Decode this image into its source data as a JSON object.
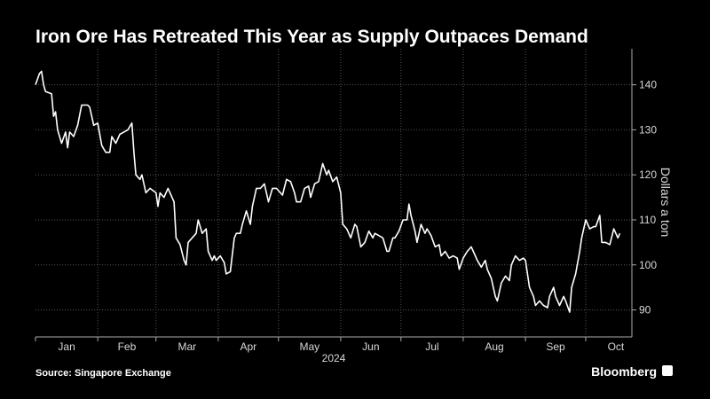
{
  "chart_data": {
    "type": "line",
    "title": "Iron Ore Has Retreated This Year as Supply Outpaces Demand",
    "ylabel": "Dollars a ton",
    "xlabel": "2024",
    "source": "Source: Singapore Exchange",
    "brand": "Bloomberg",
    "grid": true,
    "yaxis_side": "right",
    "xlim": [
      0,
      297
    ],
    "ylim": [
      84,
      148
    ],
    "yticks": [
      90,
      100,
      110,
      120,
      130,
      140
    ],
    "xticks": [
      {
        "value": 0,
        "label": "Jan"
      },
      {
        "value": 31,
        "label": "Feb"
      },
      {
        "value": 60,
        "label": "Mar"
      },
      {
        "value": 91,
        "label": "Apr"
      },
      {
        "value": 121,
        "label": "May"
      },
      {
        "value": 152,
        "label": "Jun"
      },
      {
        "value": 182,
        "label": "Jul"
      },
      {
        "value": 213,
        "label": "Aug"
      },
      {
        "value": 244,
        "label": "Sep"
      },
      {
        "value": 274,
        "label": "Oct"
      }
    ],
    "x": [
      0,
      2,
      3,
      4,
      5,
      8,
      9,
      10,
      11,
      13,
      15,
      16,
      17,
      19,
      21,
      23,
      26,
      27,
      29,
      31,
      33,
      35,
      37,
      38,
      40,
      42,
      44,
      46,
      48,
      49,
      50,
      52,
      53,
      55,
      57,
      60,
      61,
      62,
      64,
      66,
      69,
      70,
      72,
      74,
      75,
      76,
      78,
      80,
      81,
      83,
      85,
      86,
      88,
      89,
      90,
      92,
      94,
      95,
      97,
      99,
      100,
      102,
      103,
      105,
      107,
      108,
      110,
      112,
      114,
      115,
      116,
      118,
      120,
      122,
      123,
      125,
      127,
      129,
      130,
      132,
      134,
      136,
      137,
      139,
      141,
      143,
      145,
      146,
      148,
      150,
      152,
      153,
      155,
      157,
      159,
      160,
      162,
      164,
      166,
      168,
      169,
      171,
      173,
      175,
      176,
      178,
      179,
      181,
      183,
      185,
      186,
      187,
      189,
      190,
      192,
      194,
      195,
      197,
      199,
      201,
      202,
      204,
      206,
      208,
      210,
      211,
      213,
      215,
      217,
      218,
      220,
      222,
      224,
      225,
      227,
      229,
      230,
      232,
      234,
      236,
      237,
      239,
      241,
      243,
      244,
      246,
      248,
      249,
      251,
      253,
      255,
      256,
      258,
      259,
      261,
      263,
      264,
      266,
      267,
      269,
      271,
      272,
      274,
      276,
      278,
      279,
      281,
      282,
      284,
      286,
      288,
      290,
      291
    ],
    "series": [
      {
        "name": "Iron ore",
        "color": "#ffffff",
        "values": [
          140,
          142.5,
          143,
          140,
          138.5,
          138,
          133,
          134,
          130,
          127,
          129.5,
          126,
          129.5,
          128.5,
          131,
          135.5,
          135.5,
          135,
          131,
          131.5,
          126.5,
          125,
          125,
          128.5,
          127,
          129,
          129.5,
          130,
          131.5,
          125,
          120,
          119,
          120,
          116,
          117,
          116,
          113,
          116,
          115,
          117,
          114,
          106,
          104.5,
          101,
          100,
          105,
          106,
          107,
          110,
          107,
          108,
          103,
          101,
          102,
          101,
          102,
          100.5,
          98,
          98.5,
          106,
          107,
          107,
          109,
          112,
          109,
          113,
          117,
          117,
          118,
          116,
          114,
          117,
          117,
          116,
          115.5,
          119,
          118.5,
          116,
          114,
          114,
          117,
          117.5,
          115,
          118,
          118.5,
          122.5,
          120,
          121,
          118.5,
          119.5,
          116,
          109,
          108,
          106,
          109,
          108.5,
          104,
          105,
          107.5,
          106,
          107,
          106.5,
          106,
          103,
          103,
          106,
          106,
          107.5,
          110,
          110,
          113.5,
          111,
          107.5,
          105,
          109,
          107,
          108,
          106.5,
          104,
          104.5,
          102,
          103,
          101.5,
          102,
          101.5,
          99,
          101.5,
          103,
          104,
          103,
          101,
          99.5,
          101,
          99,
          97,
          93,
          92,
          96,
          97.5,
          96.5,
          100,
          102,
          101,
          101.5,
          101,
          95,
          93,
          91,
          92,
          91,
          90.5,
          93,
          95,
          93,
          91,
          93,
          92,
          89.5,
          95,
          98,
          103,
          106,
          110,
          108,
          108.5,
          108.5,
          111,
          105,
          105,
          104.5,
          108,
          106,
          107
        ]
      }
    ]
  }
}
